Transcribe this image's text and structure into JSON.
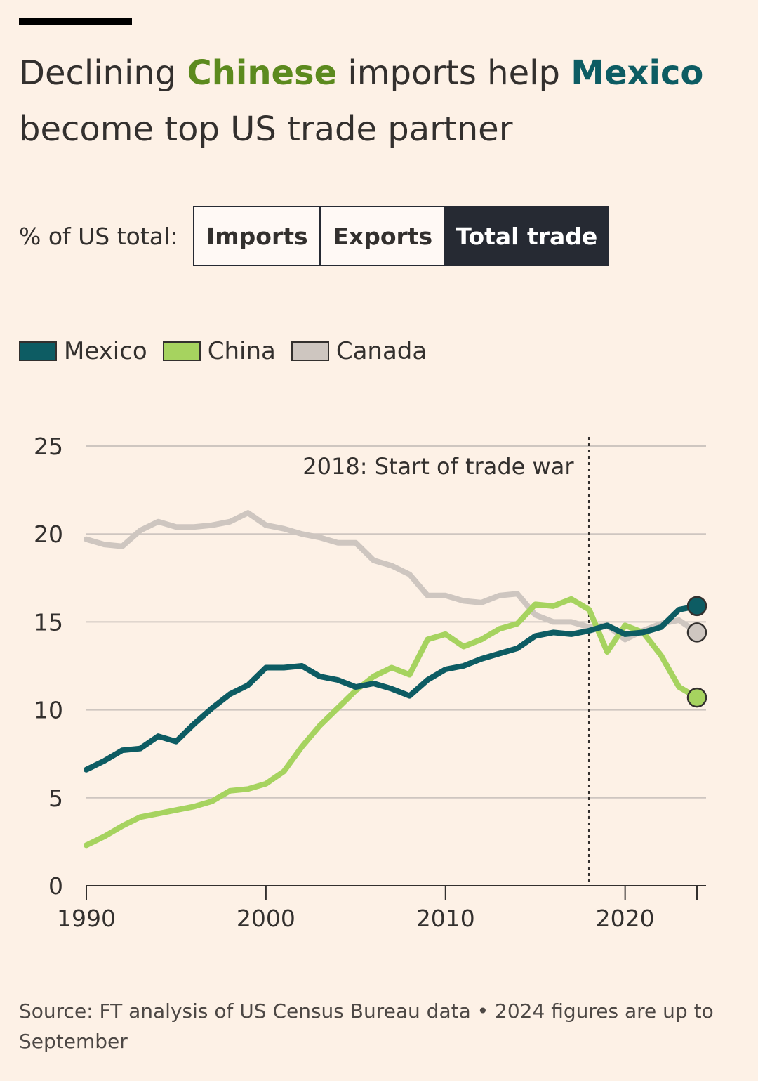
{
  "header": {
    "title_part1": "Declining ",
    "title_china": "Chinese",
    "title_part2": " imports help ",
    "title_mexico": "Mexico",
    "title_part3": " become top US trade partner"
  },
  "toggle": {
    "label": "% of US total:",
    "options": [
      "Imports",
      "Exports",
      "Total trade"
    ],
    "selected": "Total trade"
  },
  "colors": {
    "mexico": "#0d5c63",
    "china": "#a6d35f",
    "canada": "#cec6c0",
    "gridline": "#cec6c0",
    "toggle_active": "#262a33"
  },
  "chart_data": {
    "type": "line",
    "title": "Declining Chinese imports help Mexico become top US trade partner",
    "xlabel": "",
    "ylabel": "% of US total",
    "xlim": [
      1990,
      2024
    ],
    "ylim": [
      0,
      25
    ],
    "yticks": [
      0,
      5,
      10,
      15,
      20,
      25
    ],
    "xticks": [
      1990,
      2000,
      2010,
      2020
    ],
    "grid": true,
    "legend_position": "top-left",
    "x": [
      1990,
      1991,
      1992,
      1993,
      1994,
      1995,
      1996,
      1997,
      1998,
      1999,
      2000,
      2001,
      2002,
      2003,
      2004,
      2005,
      2006,
      2007,
      2008,
      2009,
      2010,
      2011,
      2012,
      2013,
      2014,
      2015,
      2016,
      2017,
      2018,
      2019,
      2020,
      2021,
      2022,
      2023,
      2024
    ],
    "series": [
      {
        "name": "Mexico",
        "color": "#0d5c63",
        "values": [
          6.6,
          7.1,
          7.7,
          7.8,
          8.5,
          8.2,
          9.2,
          10.1,
          10.9,
          11.4,
          12.4,
          12.4,
          12.5,
          11.9,
          11.7,
          11.3,
          11.5,
          11.2,
          10.8,
          11.7,
          12.3,
          12.5,
          12.9,
          13.2,
          13.5,
          14.2,
          14.4,
          14.3,
          14.5,
          14.8,
          14.3,
          14.4,
          14.7,
          15.7,
          15.9
        ]
      },
      {
        "name": "China",
        "color": "#a6d35f",
        "values": [
          2.3,
          2.8,
          3.4,
          3.9,
          4.1,
          4.3,
          4.5,
          4.8,
          5.4,
          5.5,
          5.8,
          6.5,
          7.9,
          9.1,
          10.1,
          11.1,
          11.9,
          12.4,
          12.0,
          14.0,
          14.3,
          13.6,
          14.0,
          14.6,
          14.9,
          16.0,
          15.9,
          16.3,
          15.7,
          13.3,
          14.8,
          14.4,
          13.1,
          11.3,
          10.7
        ]
      },
      {
        "name": "Canada",
        "color": "#cec6c0",
        "values": [
          19.7,
          19.4,
          19.3,
          20.2,
          20.7,
          20.4,
          20.4,
          20.5,
          20.7,
          21.2,
          20.5,
          20.3,
          20.0,
          19.8,
          19.5,
          19.5,
          18.5,
          18.2,
          17.7,
          16.5,
          16.5,
          16.2,
          16.1,
          16.5,
          16.6,
          15.4,
          15.0,
          15.0,
          14.7,
          14.8,
          14.0,
          14.5,
          14.9,
          15.1,
          14.4
        ]
      }
    ],
    "annotations": [
      {
        "x": 2018,
        "text": "2018: Start of trade war",
        "style": "dotted-vertical-line"
      }
    ]
  },
  "footer": {
    "source": "Source: FT analysis of US Census Bureau data • 2024 figures are up to September"
  }
}
